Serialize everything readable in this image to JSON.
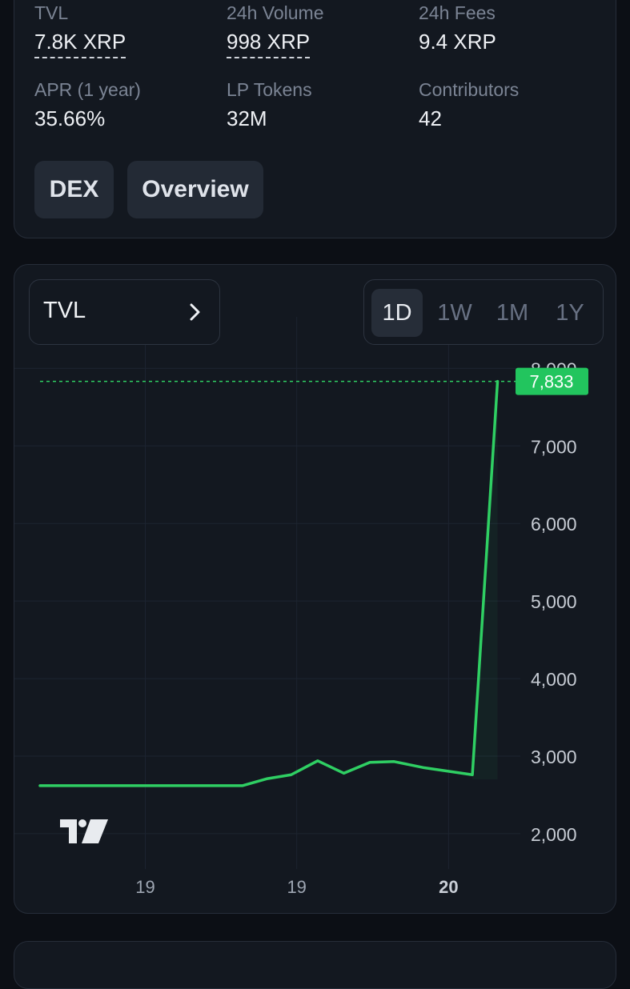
{
  "stats": {
    "tvl": {
      "label": "TVL",
      "value": "7.8K XRP"
    },
    "volume": {
      "label": "24h Volume",
      "value": "998 XRP"
    },
    "fees": {
      "label": "24h Fees",
      "value": "9.4 XRP"
    },
    "apr": {
      "label": "APR (1 year)",
      "value": "35.66%"
    },
    "lp_tokens": {
      "label": "LP Tokens",
      "value": "32M"
    },
    "contributors": {
      "label": "Contributors",
      "value": "42"
    }
  },
  "buttons": {
    "dex": "DEX",
    "overview": "Overview"
  },
  "chart_controls": {
    "metric": "TVL",
    "ranges": [
      "1D",
      "1W",
      "1M",
      "1Y"
    ],
    "active_range": "1D"
  },
  "colors": {
    "line": "#2fcf63",
    "baseline": "#c0473a",
    "price_tag": "#22c55e",
    "background": "#0c0f15",
    "card": "#131820"
  },
  "icons": {
    "chevron": "chevron-right-icon",
    "watermark": "tradingview-logo"
  },
  "chart_data": {
    "type": "line",
    "title": "",
    "ylabel": "",
    "xlabel": "",
    "ylim": [
      1700,
      8200
    ],
    "y_ticks": [
      2000,
      3000,
      4000,
      5000,
      6000,
      7000,
      8000
    ],
    "y_tick_labels": [
      "2,000",
      "3,000",
      "4,000",
      "5,000",
      "6,000",
      "7,000",
      "8,000"
    ],
    "x_ticks": [
      {
        "label": "19",
        "pos": 0.226,
        "bold": false
      },
      {
        "label": "19",
        "pos": 0.551,
        "bold": false
      },
      {
        "label": "20",
        "pos": 0.877,
        "bold": true
      }
    ],
    "points": [
      {
        "t": 0.0,
        "v": 2620
      },
      {
        "t": 0.435,
        "v": 2620
      },
      {
        "t": 0.488,
        "v": 2710
      },
      {
        "t": 0.539,
        "v": 2760
      },
      {
        "t": 0.596,
        "v": 2940
      },
      {
        "t": 0.652,
        "v": 2780
      },
      {
        "t": 0.708,
        "v": 2920
      },
      {
        "t": 0.76,
        "v": 2930
      },
      {
        "t": 0.825,
        "v": 2850
      },
      {
        "t": 0.928,
        "v": 2760
      },
      {
        "t": 0.982,
        "v": 7833
      }
    ],
    "baseline_value": 2620,
    "baseline_end_t": 0.435,
    "last_value": 7833,
    "last_value_label": "7,833"
  }
}
